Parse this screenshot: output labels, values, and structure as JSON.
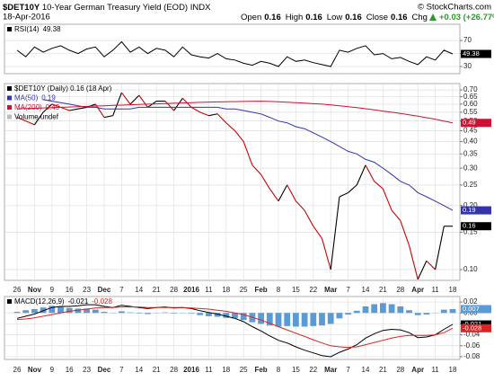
{
  "header": {
    "symbol": "$DET10Y",
    "name": "10-Year German Treasury Yield (EOD) INDX",
    "date": "18-Apr-2016",
    "quote": [
      {
        "label": "Open",
        "value": "0.16"
      },
      {
        "label": "High",
        "value": "0.16"
      },
      {
        "label": "Low",
        "value": "0.16"
      },
      {
        "label": "Close",
        "value": "0.16"
      },
      {
        "label": "Chg",
        "value": "+0.03 (+26.77%)"
      }
    ],
    "source": "© StockCharts.com"
  },
  "chart_data": [
    {
      "type": "line",
      "ylim": [
        19,
        95
      ],
      "yticks": [
        30,
        50,
        70
      ],
      "grid": true,
      "legend": "top-left",
      "value_boxes": true,
      "series": [
        {
          "name": "RSI(14)",
          "color": "#000000",
          "legend_last": true,
          "values": [
            55,
            45,
            60,
            52,
            58,
            62,
            55,
            50,
            57,
            60,
            45,
            55,
            68,
            52,
            60,
            50,
            58,
            55,
            45,
            60,
            48,
            45,
            43,
            50,
            42,
            40,
            35,
            32,
            38,
            35,
            30,
            45,
            38,
            40,
            36,
            33,
            30,
            55,
            52,
            58,
            62,
            48,
            50,
            42,
            44,
            38,
            33,
            45,
            40,
            55,
            49.38
          ]
        }
      ]
    },
    {
      "type": "line",
      "log_scale": true,
      "ylim": [
        0.089,
        0.75
      ],
      "grid": true,
      "legend": "top-left",
      "value_boxes": true,
      "yticks": [
        {
          "value": 0.1,
          "label": "0.10"
        },
        0.15,
        {
          "value": 0.2,
          "label": "0.20"
        },
        0.25,
        {
          "value": 0.3,
          "label": "0.30"
        },
        0.35,
        {
          "value": 0.4,
          "label": "0.40"
        },
        0.45,
        {
          "value": 0.5,
          "label": "0.50"
        },
        0.55,
        {
          "value": 0.6,
          "label": "0.60"
        },
        0.65,
        {
          "value": 0.7,
          "label": "0.70"
        }
      ],
      "categories": [
        "26",
        null,
        "Nov",
        null,
        "9",
        null,
        "16",
        null,
        "23",
        null,
        "Dec",
        null,
        "7",
        null,
        "14",
        null,
        "21",
        null,
        "28",
        null,
        "2016",
        null,
        "11",
        null,
        "18",
        null,
        "25",
        null,
        "Feb",
        null,
        "8",
        null,
        "15",
        null,
        "22",
        null,
        "Mar",
        null,
        "7",
        null,
        "14",
        null,
        "21",
        null,
        "28",
        null,
        "Apr",
        null,
        "11",
        null,
        "18"
      ],
      "volume_label": "Volume undef",
      "series": [
        {
          "name": "$DET10Y (Daily) 0.16 (18 Apr)",
          "color": "#000000",
          "up_color": "#000000",
          "down_color": "#cc0000",
          "legend_last": false,
          "values": [
            0.52,
            0.5,
            0.48,
            0.55,
            0.6,
            0.58,
            0.56,
            0.57,
            0.58,
            0.6,
            0.52,
            0.53,
            0.68,
            0.6,
            0.66,
            0.58,
            0.62,
            0.62,
            0.56,
            0.64,
            0.58,
            0.55,
            0.53,
            0.54,
            0.49,
            0.45,
            0.4,
            0.31,
            0.28,
            0.24,
            0.21,
            0.25,
            0.21,
            0.19,
            0.16,
            0.14,
            0.1,
            0.22,
            0.23,
            0.25,
            0.31,
            0.26,
            0.24,
            0.19,
            0.17,
            0.13,
            0.09,
            0.11,
            0.1,
            0.16,
            0.16
          ]
        },
        {
          "name": "MA(50)",
          "color": "#3333aa",
          "legend_last": true,
          "values": [
            null,
            null,
            null,
            0.63,
            0.62,
            0.61,
            0.6,
            0.59,
            0.58,
            0.58,
            0.57,
            0.57,
            0.57,
            0.57,
            0.58,
            0.58,
            0.58,
            0.58,
            0.58,
            0.58,
            0.58,
            0.58,
            0.58,
            0.58,
            0.57,
            0.57,
            0.56,
            0.55,
            0.54,
            0.52,
            0.5,
            0.49,
            0.47,
            0.46,
            0.44,
            0.42,
            0.4,
            0.38,
            0.36,
            0.35,
            0.33,
            0.32,
            0.3,
            0.28,
            0.26,
            0.25,
            0.23,
            0.22,
            0.21,
            0.2,
            0.19
          ]
        },
        {
          "name": "MA(200)",
          "color": "#cc1133",
          "legend_last": true,
          "values": [
            0.57,
            0.572,
            0.574,
            0.576,
            0.578,
            0.58,
            0.582,
            0.584,
            0.586,
            0.588,
            0.59,
            0.592,
            0.594,
            0.596,
            0.598,
            0.6,
            0.602,
            0.604,
            0.606,
            0.608,
            0.61,
            0.612,
            0.614,
            0.615,
            0.616,
            0.617,
            0.618,
            0.619,
            0.62,
            0.618,
            0.616,
            0.613,
            0.61,
            0.607,
            0.603,
            0.6,
            0.595,
            0.59,
            0.584,
            0.578,
            0.571,
            0.564,
            0.557,
            0.55,
            0.543,
            0.535,
            0.527,
            0.518,
            0.51,
            0.5,
            0.49
          ]
        }
      ]
    },
    {
      "type": "line",
      "ylim": [
        -0.085,
        0.03
      ],
      "grid": true,
      "legend": "top-left",
      "value_boxes": true,
      "yticks": [
        -0.08,
        -0.06,
        -0.04,
        -0.02,
        {
          "value": 0,
          "label": "0.00"
        },
        0.02
      ],
      "categories": [
        "26",
        null,
        "Nov",
        null,
        "9",
        null,
        "16",
        null,
        "23",
        null,
        "Dec",
        null,
        "7",
        null,
        "14",
        null,
        "21",
        null,
        "28",
        null,
        "2016",
        null,
        "11",
        null,
        "18",
        null,
        "25",
        null,
        "Feb",
        null,
        "8",
        null,
        "15",
        null,
        "22",
        null,
        "Mar",
        null,
        "7",
        null,
        "14",
        null,
        "21",
        null,
        "28",
        null,
        "Apr",
        null,
        "11",
        null,
        "18"
      ],
      "series": [
        {
          "kind": "bar",
          "color": "#5b9bd5",
          "legend_last": true,
          "values": [
            0.002,
            0.005,
            0.007,
            0.01,
            0.013,
            0.012,
            0.009,
            0.008,
            0.008,
            0.006,
            0.002,
            0,
            0.003,
            0.001,
            -0.001,
            -0.002,
            0,
            0.001,
            -0.001,
            0,
            -0.001,
            -0.004,
            -0.006,
            -0.007,
            -0.009,
            -0.01,
            -0.013,
            -0.017,
            -0.02,
            -0.023,
            -0.025,
            -0.024,
            -0.025,
            -0.025,
            -0.024,
            -0.023,
            -0.02,
            -0.01,
            -0.003,
            0.004,
            0.012,
            0.016,
            0.018,
            0.016,
            0.012,
            0.005,
            -0.004,
            -0.003,
            0,
            0.006,
            0.007
          ]
        },
        {
          "name": "MACD(12,26,9)",
          "color": "#000000",
          "legend_last": true,
          "values": [
            -0.01,
            -0.006,
            -0.002,
            0.004,
            0.01,
            0.012,
            0.012,
            0.013,
            0.015,
            0.015,
            0.012,
            0.01,
            0.014,
            0.012,
            0.01,
            0.008,
            0.01,
            0.011,
            0.009,
            0.01,
            0.008,
            0.004,
            0.001,
            -0.002,
            -0.006,
            -0.01,
            -0.016,
            -0.025,
            -0.033,
            -0.042,
            -0.05,
            -0.055,
            -0.062,
            -0.068,
            -0.073,
            -0.078,
            -0.08,
            -0.072,
            -0.066,
            -0.058,
            -0.046,
            -0.038,
            -0.032,
            -0.03,
            -0.031,
            -0.036,
            -0.045,
            -0.044,
            -0.04,
            -0.03,
            -0.021
          ]
        },
        {
          "color": "#dd2222",
          "legend_last": true,
          "values": [
            -0.012,
            -0.011,
            -0.009,
            -0.006,
            -0.003,
            0,
            0.003,
            0.005,
            0.007,
            0.009,
            0.01,
            0.01,
            0.011,
            0.011,
            0.011,
            0.01,
            0.01,
            0.01,
            0.01,
            0.01,
            0.009,
            0.008,
            0.007,
            0.005,
            0.003,
            0,
            -0.003,
            -0.008,
            -0.013,
            -0.019,
            -0.025,
            -0.031,
            -0.037,
            -0.043,
            -0.049,
            -0.055,
            -0.06,
            -0.062,
            -0.063,
            -0.062,
            -0.058,
            -0.054,
            -0.05,
            -0.046,
            -0.043,
            -0.041,
            -0.041,
            -0.041,
            -0.04,
            -0.036,
            -0.028
          ]
        }
      ]
    }
  ]
}
